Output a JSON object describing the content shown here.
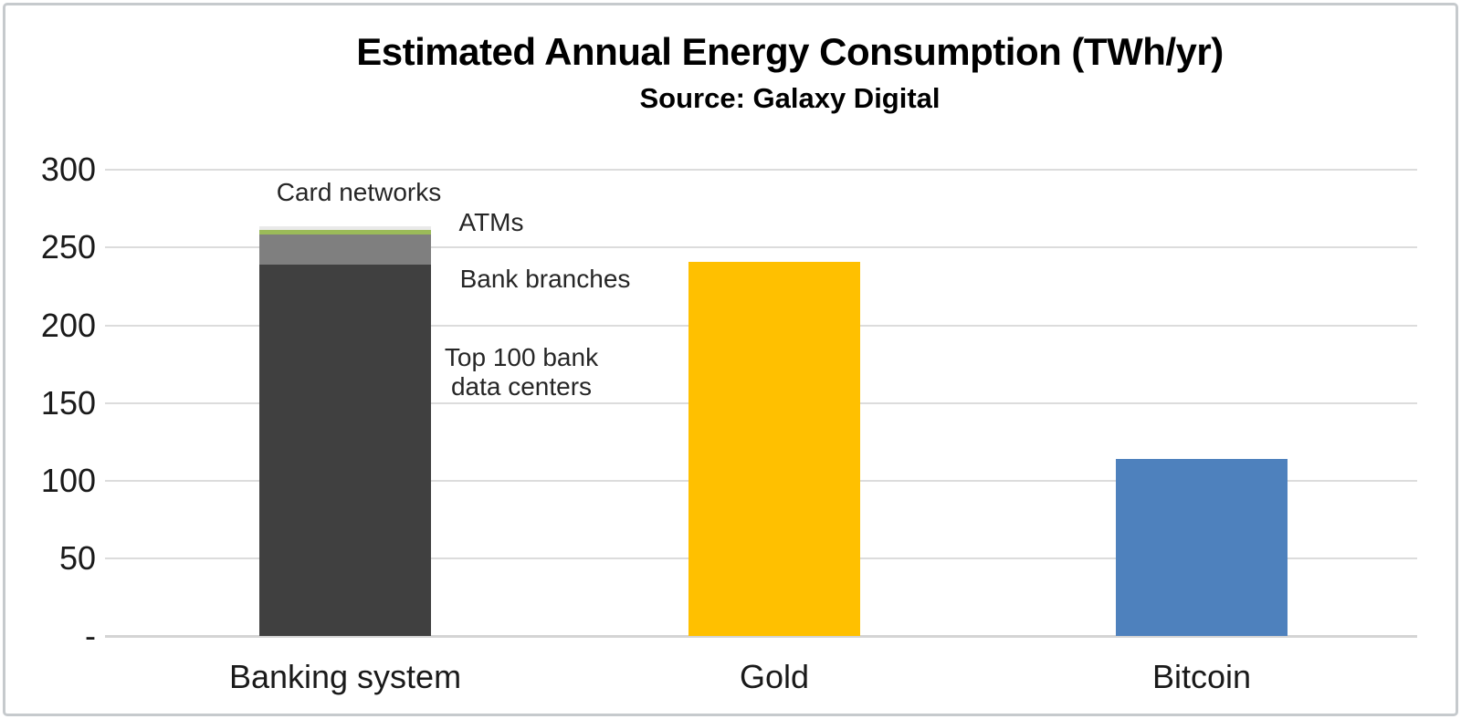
{
  "title": "Estimated Annual Energy Consumption (TWh/yr)",
  "subtitle": "Source: Galaxy Digital",
  "chart_data": {
    "type": "bar",
    "stacked": true,
    "title": "Estimated Annual Energy Consumption (TWh/yr)",
    "subtitle": "Source: Galaxy Digital",
    "ylabel": "TWh/yr",
    "ylim": [
      0,
      300
    ],
    "grid": true,
    "legend": "none (direct segment annotations)",
    "yticks": [
      {
        "value": 300,
        "label": "300"
      },
      {
        "value": 250,
        "label": "250"
      },
      {
        "value": 200,
        "label": "200"
      },
      {
        "value": 150,
        "label": "150"
      },
      {
        "value": 100,
        "label": "100"
      },
      {
        "value": 50,
        "label": "50"
      },
      {
        "value": 0,
        "label": "-"
      }
    ],
    "categories": [
      "Banking system",
      "Gold",
      "Bitcoin"
    ],
    "bars": [
      {
        "category": "Banking system",
        "total": 263.6,
        "segments": [
          {
            "label": "Top 100 bank data centers",
            "value": 238.9,
            "color": "#404040"
          },
          {
            "label": "Bank branches",
            "value": 19.7,
            "color": "#7f7f7f"
          },
          {
            "label": "ATMs",
            "value": 2.9,
            "color": "#9bbb59"
          },
          {
            "label": "Card networks",
            "value": 2.1,
            "color": "#e9e9e9"
          }
        ]
      },
      {
        "category": "Gold",
        "total": 240.6,
        "segments": [
          {
            "label": "Gold",
            "value": 240.6,
            "color": "#ffc000"
          }
        ]
      },
      {
        "category": "Bitcoin",
        "total": 113.9,
        "segments": [
          {
            "label": "Bitcoin",
            "value": 113.9,
            "color": "#4e81bd"
          }
        ]
      }
    ],
    "annotations": [
      {
        "id": "card-networks",
        "text": "Card networks"
      },
      {
        "id": "atms",
        "text": "ATMs"
      },
      {
        "id": "bank-branches",
        "text": "Bank branches"
      },
      {
        "id": "top-100",
        "text": "Top 100 bank\ndata centers"
      }
    ]
  },
  "colors": {
    "bar_dark": "#404040",
    "bar_gray": "#7f7f7f",
    "bar_green": "#9bbb59",
    "bar_lightgray": "#e9e9e9",
    "bar_gold": "#ffc000",
    "bar_blue": "#4e81bd",
    "gridline": "#dcdcdc",
    "frame_border": "#c6cacd",
    "text": "#1a1a1a"
  }
}
